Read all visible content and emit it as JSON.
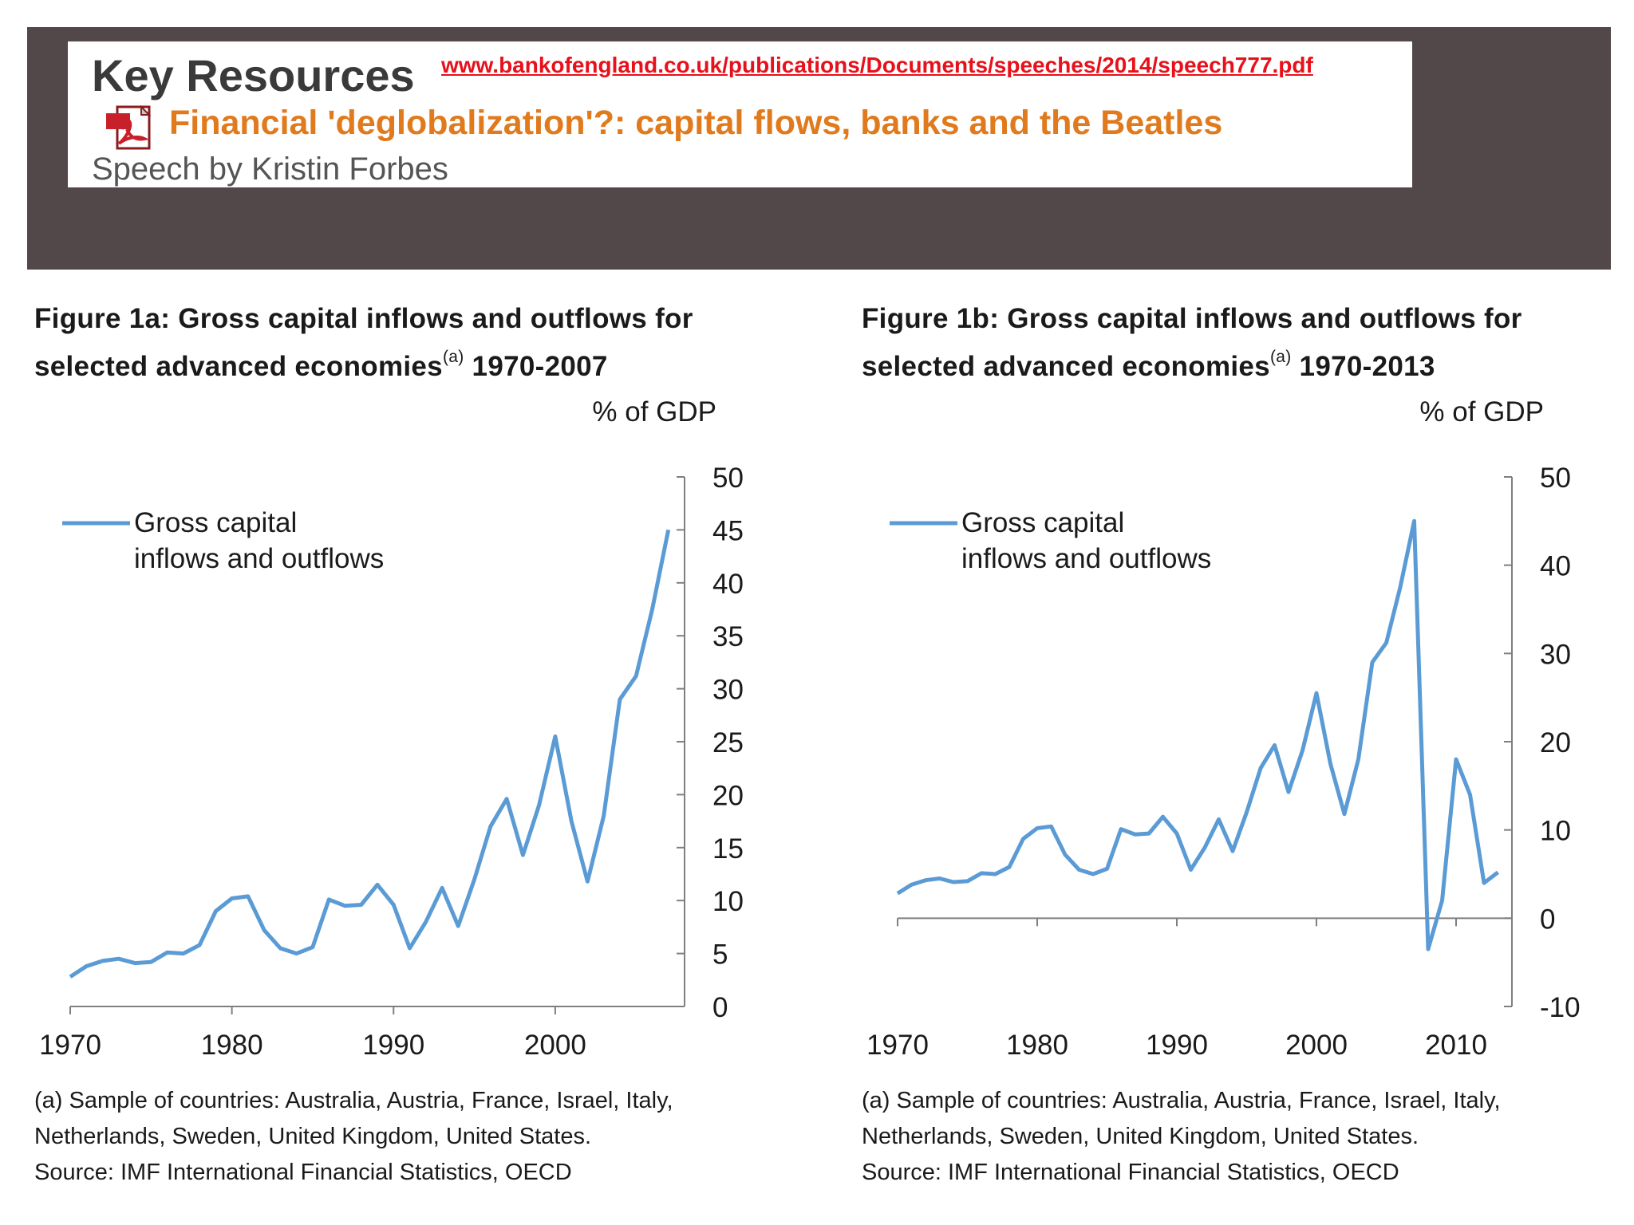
{
  "banner": {
    "title": "Key Resources",
    "url": "www.bankofengland.co.uk/publications/Documents/speeches/2014/speech777.pdf",
    "speech_title": "Financial 'deglobalization'?: capital flows, banks and the Beatles",
    "speech_author": "Speech by Kristin Forbes",
    "pdf_icon": "pdf-file-icon"
  },
  "figures": [
    {
      "title_line1": "Figure 1a: Gross capital inflows and outflows for",
      "title_line2": "selected advanced economies",
      "title_sup": "(a)",
      "title_years": " 1970-2007",
      "note_line1": "(a) Sample of countries: Australia, Austria, France, Israel, Italy,",
      "note_line2": "Netherlands, Sweden, United Kingdom, United States.",
      "source": "Source: IMF International Financial Statistics, OECD"
    },
    {
      "title_line1": "Figure 1b: Gross capital inflows and outflows for",
      "title_line2": "selected advanced economies",
      "title_sup": "(a)",
      "title_years": " 1970-2013",
      "note_line1": "(a) Sample of countries: Australia, Austria, France, Israel, Italy,",
      "note_line2": "Netherlands, Sweden, United Kingdom, United States.",
      "source": "Source: IMF International Financial Statistics, OECD"
    }
  ],
  "chart_data": [
    {
      "type": "line",
      "ylabel": "% of GDP",
      "ylim": [
        0,
        50
      ],
      "yticks": [
        0,
        5,
        10,
        15,
        20,
        25,
        30,
        35,
        40,
        45,
        50
      ],
      "xlim": [
        1970,
        2008
      ],
      "xticks": [
        1970,
        1980,
        1990,
        2000
      ],
      "legend_position": "top-left",
      "legend_lines": [
        "Gross capital",
        "inflows and outflows"
      ],
      "line_color": "#5b9bd5",
      "series": [
        {
          "name": "Gross capital inflows and outflows",
          "x": [
            1970,
            1971,
            1972,
            1973,
            1974,
            1975,
            1976,
            1977,
            1978,
            1979,
            1980,
            1981,
            1982,
            1983,
            1984,
            1985,
            1986,
            1987,
            1988,
            1989,
            1990,
            1991,
            1992,
            1993,
            1994,
            1995,
            1996,
            1997,
            1998,
            1999,
            2000,
            2001,
            2002,
            2003,
            2004,
            2005,
            2006,
            2007
          ],
          "values": [
            2.8,
            3.8,
            4.3,
            4.5,
            4.1,
            4.2,
            5.1,
            5.0,
            5.8,
            9.0,
            10.2,
            10.4,
            7.2,
            5.5,
            5.0,
            5.6,
            10.1,
            9.5,
            9.6,
            11.5,
            9.6,
            5.5,
            8.0,
            11.2,
            7.6,
            12.0,
            17.0,
            19.6,
            14.3,
            19.0,
            25.5,
            17.5,
            11.8,
            18.0,
            29.0,
            31.2,
            37.5,
            45.0
          ]
        }
      ]
    },
    {
      "type": "line",
      "ylabel": "% of GDP",
      "ylim": [
        -10,
        50
      ],
      "yticks": [
        -10,
        0,
        10,
        20,
        30,
        40,
        50
      ],
      "xlim": [
        1970,
        2014
      ],
      "xticks": [
        1970,
        1980,
        1990,
        2000,
        2010
      ],
      "legend_position": "top-left",
      "legend_lines": [
        "Gross capital",
        "inflows and outflows"
      ],
      "line_color": "#5b9bd5",
      "series": [
        {
          "name": "Gross capital inflows and outflows",
          "x": [
            1970,
            1971,
            1972,
            1973,
            1974,
            1975,
            1976,
            1977,
            1978,
            1979,
            1980,
            1981,
            1982,
            1983,
            1984,
            1985,
            1986,
            1987,
            1988,
            1989,
            1990,
            1991,
            1992,
            1993,
            1994,
            1995,
            1996,
            1997,
            1998,
            1999,
            2000,
            2001,
            2002,
            2003,
            2004,
            2005,
            2006,
            2007,
            2008,
            2009,
            2010,
            2011,
            2012,
            2013
          ],
          "values": [
            2.8,
            3.8,
            4.3,
            4.5,
            4.1,
            4.2,
            5.1,
            5.0,
            5.8,
            9.0,
            10.2,
            10.4,
            7.2,
            5.5,
            5.0,
            5.6,
            10.1,
            9.5,
            9.6,
            11.5,
            9.6,
            5.5,
            8.0,
            11.2,
            7.6,
            12.0,
            17.0,
            19.6,
            14.3,
            19.0,
            25.5,
            17.5,
            11.8,
            18.0,
            29.0,
            31.2,
            37.5,
            45.0,
            -3.5,
            2.0,
            18.0,
            14.0,
            4.0,
            5.2
          ]
        }
      ]
    }
  ]
}
